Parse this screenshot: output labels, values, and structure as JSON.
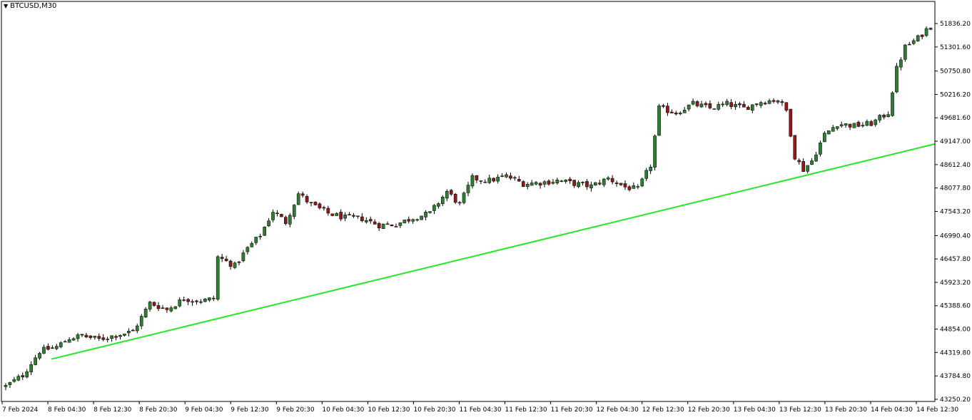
{
  "chart_header": {
    "menu_icon": "triangle-down-icon",
    "symbol": "BTCUSD,M30"
  },
  "colors": {
    "background": "#ffffff",
    "frame": "#000000",
    "candle_up_body": "#2f7d32",
    "candle_down_body": "#8b1a1a",
    "wick": "#000000",
    "trendline": "#27e627"
  },
  "chart_data": {
    "type": "candlestick",
    "title": "BTCUSD,M30",
    "timeframe": "M30",
    "ylim": [
      43250.2,
      52100
    ],
    "y_ticks": [
      "51836.20",
      "51301.60",
      "50750.80",
      "50216.20",
      "49681.60",
      "49147.00",
      "48612.40",
      "48077.80",
      "47543.20",
      "46990.40",
      "46457.80",
      "45923.20",
      "45388.60",
      "44854.00",
      "44319.80",
      "43784.80",
      "43250.20"
    ],
    "x_ticks": [
      "7 Feb 2024",
      "8 Feb 04:30",
      "8 Feb 12:30",
      "8 Feb 20:30",
      "9 Feb 04:30",
      "9 Feb 12:30",
      "9 Feb 20:30",
      "10 Feb 04:30",
      "10 Feb 12:30",
      "10 Feb 20:30",
      "11 Feb 04:30",
      "11 Feb 12:30",
      "11 Feb 20:30",
      "12 Feb 04:30",
      "12 Feb 12:30",
      "12 Feb 20:30",
      "13 Feb 04:30",
      "13 Feb 12:30",
      "13 Feb 20:30",
      "14 Feb 04:30",
      "14 Feb 12:30"
    ],
    "close_path": [
      [
        0,
        43550
      ],
      [
        4,
        43800
      ],
      [
        8,
        44350
      ],
      [
        12,
        44450
      ],
      [
        15,
        44650
      ],
      [
        18,
        44700
      ],
      [
        22,
        44620
      ],
      [
        26,
        44720
      ],
      [
        30,
        44800
      ],
      [
        34,
        45450
      ],
      [
        38,
        45300
      ],
      [
        42,
        45550
      ],
      [
        46,
        45500
      ],
      [
        49,
        45550
      ],
      [
        50,
        46500
      ],
      [
        54,
        46300
      ],
      [
        57,
        46700
      ],
      [
        60,
        47000
      ],
      [
        63,
        47550
      ],
      [
        66,
        47300
      ],
      [
        69,
        47950
      ],
      [
        72,
        47700
      ],
      [
        76,
        47500
      ],
      [
        80,
        47400
      ],
      [
        84,
        47380
      ],
      [
        88,
        47230
      ],
      [
        92,
        47250
      ],
      [
        96,
        47400
      ],
      [
        100,
        47500
      ],
      [
        104,
        48000
      ],
      [
        107,
        47700
      ],
      [
        110,
        48300
      ],
      [
        114,
        48250
      ],
      [
        118,
        48350
      ],
      [
        122,
        48180
      ],
      [
        126,
        48200
      ],
      [
        130,
        48250
      ],
      [
        134,
        48180
      ],
      [
        138,
        48120
      ],
      [
        142,
        48300
      ],
      [
        146,
        48100
      ],
      [
        149,
        48050
      ],
      [
        152,
        48600
      ],
      [
        154,
        49900
      ],
      [
        158,
        49800
      ],
      [
        162,
        50000
      ],
      [
        166,
        49900
      ],
      [
        170,
        50000
      ],
      [
        174,
        49900
      ],
      [
        178,
        50050
      ],
      [
        182,
        50100
      ],
      [
        184,
        49850
      ],
      [
        186,
        48800
      ],
      [
        188,
        48500
      ],
      [
        190,
        48700
      ],
      [
        193,
        49300
      ],
      [
        196,
        49550
      ],
      [
        200,
        49500
      ],
      [
        204,
        49550
      ],
      [
        208,
        49800
      ],
      [
        210,
        50800
      ],
      [
        212,
        51300
      ],
      [
        215,
        51500
      ],
      [
        218,
        51800
      ]
    ],
    "wick_noise": 80,
    "trendline": {
      "points": [
        {
          "x": "8 Feb 04:00",
          "y": 44300
        },
        {
          "x": "14 Feb 14:30",
          "y": 49150
        }
      ],
      "extends_right": true
    }
  }
}
